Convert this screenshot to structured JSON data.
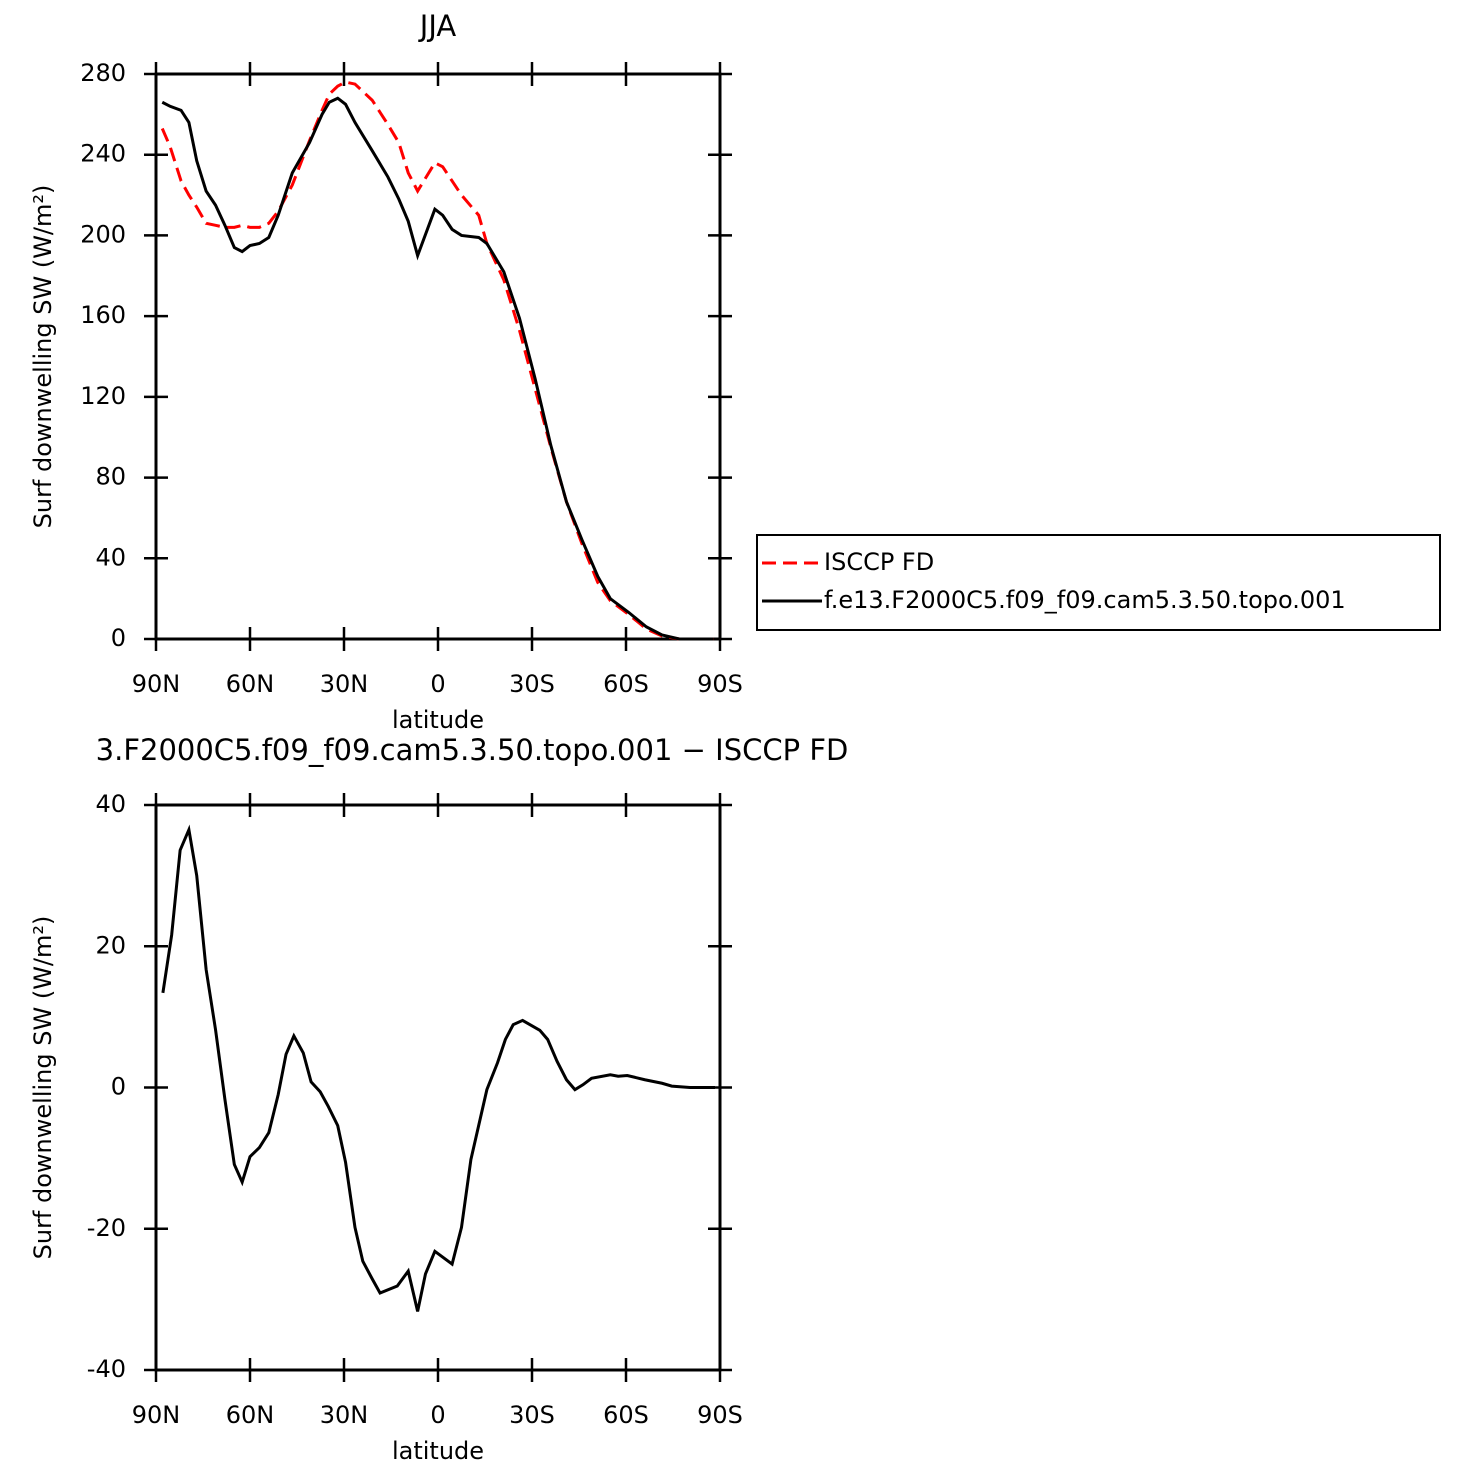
{
  "chart_data": [
    {
      "type": "line",
      "title": "JJA",
      "x_label": "latitude",
      "y_label": "Surf downwelling SW (W/m²)",
      "x": [
        88,
        85.5,
        82,
        79.5,
        77,
        74,
        71,
        68,
        65,
        62.5,
        60,
        57,
        54,
        51,
        46.5,
        41,
        37,
        34.7,
        32,
        29.5,
        26.5,
        21,
        16,
        12.5,
        9.5,
        6.5,
        1,
        -1.5,
        -4.5,
        -7.5,
        -13,
        -15.6,
        -21,
        -26,
        -31,
        -36,
        -41,
        -46,
        -51,
        -55,
        -61,
        -66.5,
        -71.5,
        -77,
        -88
      ],
      "series": [
        {
          "name": "ISCCP FD",
          "color": "#ff0000",
          "line_style": "dashed",
          "values": [
            253,
            244,
            227,
            220,
            214,
            206,
            205,
            204,
            204,
            205,
            204,
            204,
            206,
            212,
            225,
            247,
            262,
            270,
            274,
            276,
            275,
            267,
            255,
            246,
            231,
            222,
            236,
            234,
            227,
            220,
            210,
            196,
            178,
            153,
            124,
            95,
            68,
            47,
            28,
            19,
            12,
            5,
            1.5,
            0,
            0
          ]
        },
        {
          "name": "f.e13.F2000C5.f09_f09.cam5.3.50.topo.001",
          "color": "#000000",
          "line_style": "solid",
          "values": [
            266,
            264,
            262,
            256,
            237,
            222,
            215,
            205,
            194,
            192,
            195,
            196,
            199,
            210,
            231,
            246,
            260,
            266,
            268,
            265,
            256,
            242,
            229,
            218,
            207,
            190,
            213,
            210,
            203,
            200,
            199,
            196,
            182,
            159,
            129,
            96,
            68,
            49,
            31,
            20,
            13,
            6,
            2,
            0,
            0
          ]
        }
      ],
      "xlim": [
        90,
        -90
      ],
      "xticks": [
        {
          "value": 90,
          "label": "90N"
        },
        {
          "value": 60,
          "label": "60N"
        },
        {
          "value": 30,
          "label": "30N"
        },
        0,
        {
          "value": -30,
          "label": "30S"
        },
        {
          "value": -60,
          "label": "60S"
        },
        {
          "value": -90,
          "label": "90S"
        }
      ],
      "ylim": [
        0,
        280
      ],
      "yticks": [
        0,
        40,
        80,
        120,
        160,
        200,
        240,
        280
      ],
      "grid": false
    },
    {
      "type": "line",
      "title": "3.F2000C5.f09_f09.cam5.3.50.topo.001 − ISCCP FD",
      "x_label": "latitude",
      "y_label": "Surf downwelling SW (W/m²)",
      "x": [
        87.8,
        85,
        82.3,
        79.5,
        77,
        74,
        71,
        68,
        65,
        62.5,
        60,
        57,
        54,
        51,
        48.5,
        46,
        43,
        40.5,
        37.6,
        35,
        32,
        29.5,
        26.5,
        24,
        21,
        18.5,
        13,
        9.5,
        6.5,
        4,
        1,
        -4.5,
        -7.5,
        -10.5,
        -15.6,
        -19,
        -21.5,
        -24,
        -27,
        -32.5,
        -35,
        -38,
        -41,
        -43.7,
        -46.3,
        -49,
        -55,
        -57.5,
        -60.4,
        -66,
        -71.5,
        -74.6,
        -80.4,
        -88.4
      ],
      "series": [
        {
          "color": "#000000",
          "line_style": "solid",
          "values": [
            13.4,
            21.6,
            33.6,
            36.5,
            30,
            16.7,
            8.2,
            -1.7,
            -10.9,
            -13.4,
            -9.8,
            -8.5,
            -6.4,
            -1,
            4.7,
            7.3,
            4.9,
            0.8,
            -0.6,
            -2.7,
            -5.4,
            -10.6,
            -19.8,
            -24.6,
            -27.1,
            -29.1,
            -28.1,
            -26,
            -31.7,
            -26.4,
            -23.2,
            -25,
            -19.8,
            -10.2,
            -0.3,
            3.5,
            6.8,
            8.9,
            9.5,
            8.1,
            6.8,
            3.7,
            1.1,
            -0.3,
            0.4,
            1.3,
            1.8,
            1.6,
            1.7,
            1.1,
            0.6,
            0.2,
            0,
            0
          ]
        }
      ],
      "xlim": [
        90,
        -90
      ],
      "xticks": [
        {
          "value": 90,
          "label": "90N"
        },
        {
          "value": 60,
          "label": "60N"
        },
        {
          "value": 30,
          "label": "30N"
        },
        0,
        {
          "value": -30,
          "label": "30S"
        },
        {
          "value": -60,
          "label": "60S"
        },
        {
          "value": -90,
          "label": "90S"
        }
      ],
      "ylim": [
        -40,
        40
      ],
      "yticks": [
        -40,
        -20,
        0,
        20,
        40
      ],
      "grid": false
    }
  ]
}
